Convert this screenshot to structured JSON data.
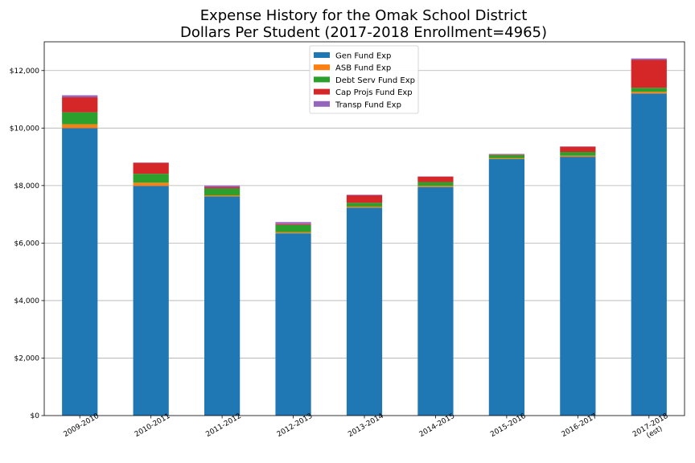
{
  "chart_data": {
    "type": "bar",
    "stacked": true,
    "title_lines": [
      "Expense History for the Omak School District",
      "Dollars Per Student (2017-2018 Enrollment=4965)"
    ],
    "categories": [
      [
        "2009-2010"
      ],
      [
        "2010-2011"
      ],
      [
        "2011-2012"
      ],
      [
        "2012-2013"
      ],
      [
        "2013-2014"
      ],
      [
        "2014-2015"
      ],
      [
        "2015-2016"
      ],
      [
        "2016-2017"
      ],
      [
        "2017-2018",
        "(est)"
      ]
    ],
    "series": [
      {
        "name": "Gen Fund Exp",
        "color": "#1f77b4",
        "values": [
          10000,
          7990,
          7620,
          6340,
          7230,
          7950,
          8920,
          9000,
          11200
        ]
      },
      {
        "name": "ASB Fund Exp",
        "color": "#ff7f0e",
        "values": [
          130,
          110,
          40,
          40,
          40,
          40,
          30,
          40,
          60
        ]
      },
      {
        "name": "Debt Serv Fund Exp",
        "color": "#2ca02c",
        "values": [
          420,
          310,
          240,
          250,
          130,
          130,
          110,
          130,
          140
        ]
      },
      {
        "name": "Cap Projs Fund Exp",
        "color": "#d62728",
        "values": [
          520,
          380,
          40,
          30,
          260,
          190,
          20,
          180,
          970
        ]
      },
      {
        "name": "Transp Fund Exp",
        "color": "#9467bd",
        "values": [
          70,
          10,
          60,
          70,
          20,
          10,
          20,
          10,
          50
        ]
      }
    ],
    "yticks": [
      0,
      2000,
      4000,
      6000,
      8000,
      10000,
      12000
    ],
    "ytick_labels": [
      "$0",
      "$2,000",
      "$4,000",
      "$6,000",
      "$8,000",
      "$10,000",
      "$12,000"
    ],
    "ylim": [
      0,
      13000
    ],
    "grid": "horizontal",
    "legend_position": "top-center"
  }
}
